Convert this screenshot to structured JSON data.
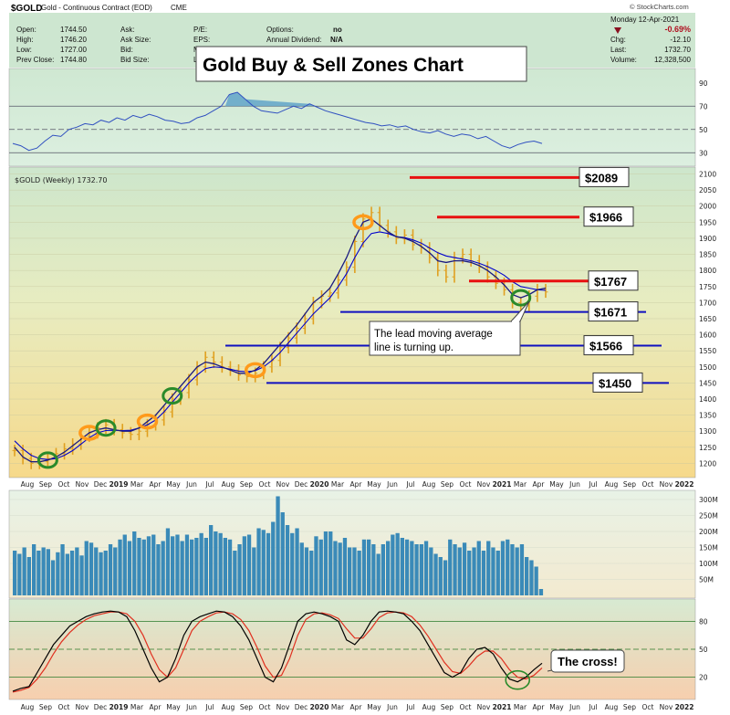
{
  "header": {
    "symbol": "$GOLD",
    "name": "Gold - Continuous Contract (EOD)",
    "exchange": "CME",
    "watermark": "© StockCharts.com",
    "date": "Monday  12-Apr-2021",
    "left_fields": [
      {
        "label": "Open:",
        "value": "1744.50"
      },
      {
        "label": "High:",
        "value": "1746.20"
      },
      {
        "label": "Low:",
        "value": "1727.00"
      },
      {
        "label": "Prev Close:",
        "value": "1744.80"
      }
    ],
    "mid_fields": [
      "Ask:",
      "Ask Size:",
      "Bid:",
      "Bid Size:"
    ],
    "pe_fields": [
      "P/E:",
      "EPS:",
      "Mk",
      "La"
    ],
    "options_label": "Options:",
    "options_value": "no",
    "dividend_label": "Annual Dividend:",
    "dividend_value": "N/A",
    "right_fields": [
      {
        "label": "",
        "value": "-0.69%"
      },
      {
        "label": "Chg:",
        "value": "-12.10"
      },
      {
        "label": "Last:",
        "value": "1732.70"
      },
      {
        "label": "Volume:",
        "value": "12,328,500"
      }
    ]
  },
  "title": "Gold Buy & Sell Zones Chart",
  "price_panel_label": "$GOLD (Weekly) 1732.70",
  "annotation_note": [
    "The lead moving average",
    "line is turning up."
  ],
  "cross_note": "The cross!",
  "colors": {
    "price_bars": "#e0a020",
    "lead_ma": "#1a1a80",
    "lag_ma": "#0000cc",
    "resistance": "#e81010",
    "support": "#1010c0",
    "buy_circle": "#2a8a2a",
    "sell_circle": "#ff9a1a",
    "volume": "#3a8ab8",
    "stoch_k": "#000000",
    "stoch_d": "#e03020",
    "rsi_line": "#3050c0"
  },
  "chart_data": [
    {
      "panel": "rsi",
      "type": "line",
      "yticks": [
        90,
        70,
        50,
        30
      ],
      "ylim": [
        20,
        100
      ],
      "reference_lines": [
        70,
        50,
        30
      ],
      "values": [
        38,
        36,
        32,
        34,
        40,
        45,
        44,
        50,
        52,
        55,
        54,
        58,
        56,
        60,
        58,
        62,
        60,
        63,
        61,
        58,
        57,
        55,
        56,
        60,
        62,
        66,
        70,
        80,
        82,
        76,
        70,
        66,
        65,
        64,
        67,
        70,
        68,
        72,
        69,
        66,
        64,
        62,
        60,
        58,
        56,
        55,
        53,
        54,
        52,
        53,
        50,
        48,
        47,
        49,
        46,
        44,
        46,
        45,
        42,
        44,
        40,
        36,
        34,
        37,
        39,
        40,
        38
      ]
    },
    {
      "panel": "price",
      "type": "line",
      "yticks": [
        2100,
        2050,
        2000,
        1950,
        1900,
        1850,
        1800,
        1750,
        1700,
        1650,
        1600,
        1550,
        1500,
        1450,
        1400,
        1350,
        1300,
        1250,
        1200
      ],
      "ylim": [
        1170,
        2110
      ],
      "xlabels": [
        "Aug",
        "Sep",
        "Oct",
        "Nov",
        "Dec",
        "2019",
        "Mar",
        "Apr",
        "May",
        "Jun",
        "Jul",
        "Aug",
        "Sep",
        "Oct",
        "Nov",
        "Dec",
        "2020",
        "Mar",
        "Apr",
        "May",
        "Jun",
        "Jul",
        "Aug",
        "Sep",
        "Oct",
        "Nov",
        "2021",
        "Mar",
        "Apr",
        "May",
        "Jun",
        "Jul",
        "Aug",
        "Sep",
        "Oct",
        "Nov",
        "2022"
      ],
      "closes": [
        1240,
        1215,
        1200,
        1205,
        1215,
        1230,
        1245,
        1260,
        1285,
        1295,
        1310,
        1320,
        1305,
        1295,
        1290,
        1300,
        1320,
        1335,
        1360,
        1400,
        1420,
        1460,
        1500,
        1530,
        1515,
        1500,
        1490,
        1475,
        1470,
        1480,
        1500,
        1520,
        1560,
        1590,
        1620,
        1650,
        1700,
        1720,
        1730,
        1770,
        1810,
        1890,
        1960,
        1980,
        1940,
        1920,
        1900,
        1910,
        1880,
        1870,
        1840,
        1800,
        1780,
        1840,
        1850,
        1830,
        1810,
        1780,
        1760,
        1740,
        1700,
        1690,
        1720,
        1740,
        1733
      ],
      "lead_ma": [
        1250,
        1220,
        1205,
        1205,
        1210,
        1220,
        1235,
        1255,
        1275,
        1295,
        1305,
        1310,
        1305,
        1300,
        1300,
        1310,
        1330,
        1350,
        1380,
        1410,
        1440,
        1470,
        1500,
        1515,
        1510,
        1500,
        1490,
        1480,
        1480,
        1490,
        1510,
        1540,
        1570,
        1600,
        1630,
        1665,
        1700,
        1720,
        1745,
        1790,
        1840,
        1900,
        1950,
        1960,
        1940,
        1920,
        1905,
        1900,
        1890,
        1875,
        1855,
        1830,
        1825,
        1830,
        1830,
        1825,
        1815,
        1800,
        1780,
        1755,
        1725,
        1715,
        1725,
        1740,
        1745
      ],
      "lag_ma": [
        1270,
        1245,
        1225,
        1215,
        1212,
        1215,
        1225,
        1240,
        1260,
        1280,
        1295,
        1302,
        1303,
        1302,
        1303,
        1310,
        1320,
        1335,
        1360,
        1390,
        1420,
        1450,
        1475,
        1495,
        1500,
        1498,
        1493,
        1487,
        1485,
        1488,
        1500,
        1520,
        1545,
        1575,
        1605,
        1635,
        1665,
        1690,
        1715,
        1750,
        1790,
        1840,
        1885,
        1915,
        1920,
        1915,
        1905,
        1902,
        1895,
        1885,
        1870,
        1855,
        1845,
        1840,
        1835,
        1830,
        1822,
        1812,
        1800,
        1785,
        1765,
        1750,
        1745,
        1740,
        1738
      ],
      "resistance_levels": [
        2089,
        1966,
        1767
      ],
      "support_levels": [
        1671,
        1566,
        1450
      ],
      "level_labels": [
        "$2089",
        "$1966",
        "$1767",
        "$1671",
        "$1566",
        "$1450"
      ]
    },
    {
      "panel": "volume",
      "type": "bar",
      "yticks": [
        "300M",
        "250M",
        "200M",
        "150M",
        "100M",
        "50M"
      ],
      "ylim": [
        0,
        320
      ],
      "values": [
        140,
        130,
        150,
        120,
        160,
        140,
        150,
        145,
        110,
        135,
        160,
        130,
        140,
        150,
        125,
        170,
        165,
        150,
        135,
        140,
        160,
        150,
        175,
        190,
        170,
        200,
        180,
        175,
        185,
        190,
        160,
        170,
        210,
        185,
        190,
        170,
        190,
        175,
        180,
        195,
        180,
        220,
        200,
        195,
        180,
        175,
        140,
        160,
        185,
        190,
        150,
        210,
        205,
        195,
        230,
        310,
        260,
        220,
        195,
        210,
        165,
        150,
        140,
        185,
        175,
        200,
        200,
        170,
        165,
        180,
        150,
        150,
        140,
        175,
        175,
        160,
        130,
        160,
        170,
        190,
        195,
        180,
        175,
        170,
        160,
        160,
        170,
        150,
        130,
        120,
        110,
        175,
        160,
        150,
        165,
        140,
        150,
        170,
        140,
        170,
        150,
        140,
        170,
        175,
        160,
        150,
        160,
        120,
        110,
        90,
        20
      ]
    },
    {
      "panel": "stochastic",
      "type": "line",
      "yticks": [
        80,
        50,
        20
      ],
      "ylim": [
        0,
        100
      ],
      "reference_lines": [
        80,
        50,
        20
      ],
      "k": [
        5,
        8,
        10,
        25,
        40,
        55,
        65,
        75,
        80,
        85,
        88,
        90,
        91,
        90,
        85,
        70,
        50,
        30,
        15,
        20,
        40,
        65,
        80,
        85,
        88,
        91,
        90,
        85,
        75,
        60,
        40,
        20,
        15,
        30,
        55,
        80,
        88,
        90,
        88,
        85,
        80,
        60,
        55,
        65,
        80,
        90,
        91,
        90,
        88,
        80,
        70,
        55,
        40,
        25,
        20,
        25,
        40,
        50,
        52,
        45,
        30,
        18,
        15,
        20,
        28,
        35
      ],
      "d": [
        4,
        6,
        9,
        18,
        30,
        45,
        58,
        68,
        76,
        82,
        86,
        88,
        90,
        90,
        88,
        80,
        65,
        45,
        28,
        20,
        30,
        50,
        70,
        80,
        85,
        89,
        90,
        88,
        82,
        70,
        52,
        32,
        20,
        22,
        40,
        65,
        82,
        88,
        89,
        87,
        83,
        72,
        62,
        62,
        72,
        84,
        89,
        90,
        89,
        85,
        76,
        64,
        50,
        36,
        26,
        24,
        32,
        42,
        48,
        48,
        40,
        28,
        20,
        18,
        22,
        30
      ]
    }
  ]
}
